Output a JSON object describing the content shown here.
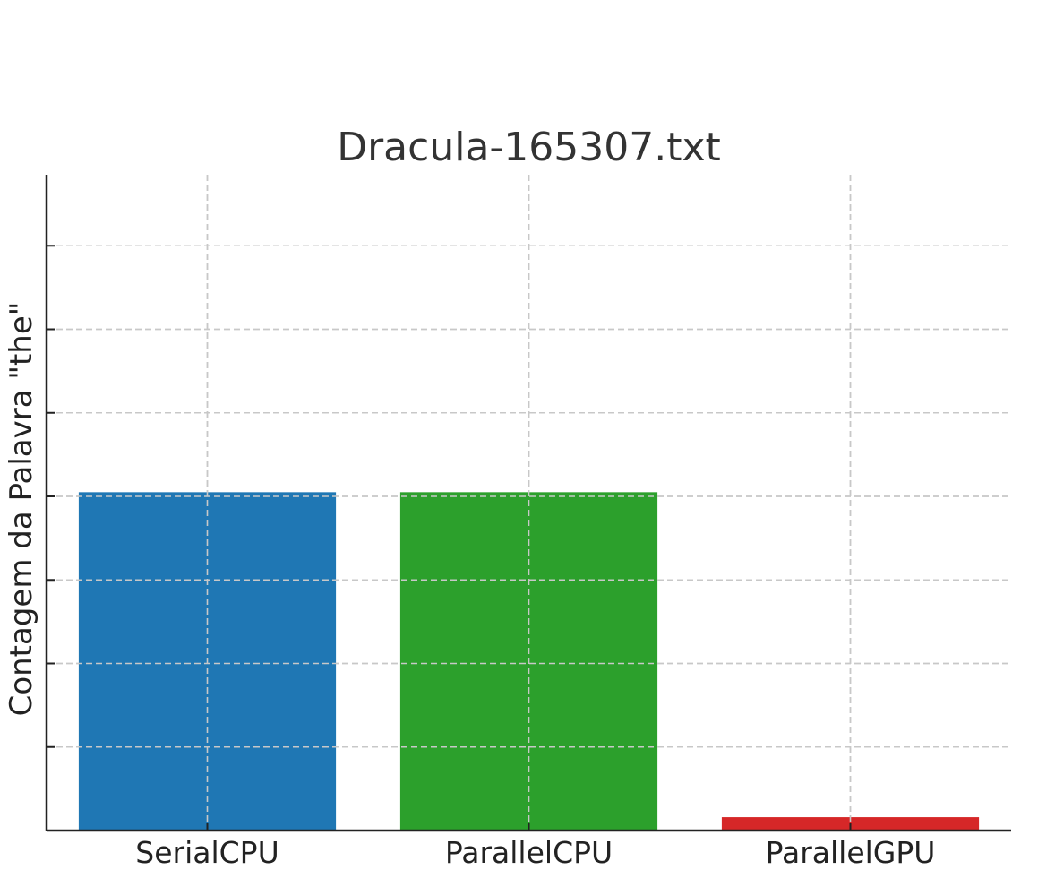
{
  "chart_data": {
    "type": "bar",
    "title": "Dracula-165307.txt",
    "xlabel": "",
    "ylabel": "Contagem da Palavra \"the\"",
    "categories": [
      "SerialCPU",
      "ParallelCPU",
      "ParallelGPU"
    ],
    "values": [
      4050,
      4050,
      160
    ],
    "ylim": [
      0,
      7850
    ],
    "yticks": [
      0,
      1000,
      2000,
      3000,
      4000,
      5000,
      6000,
      7000
    ],
    "show_ytick_labels": false,
    "grid": true,
    "colors": [
      "#1f77b4",
      "#2ca02c",
      "#d62728"
    ]
  }
}
